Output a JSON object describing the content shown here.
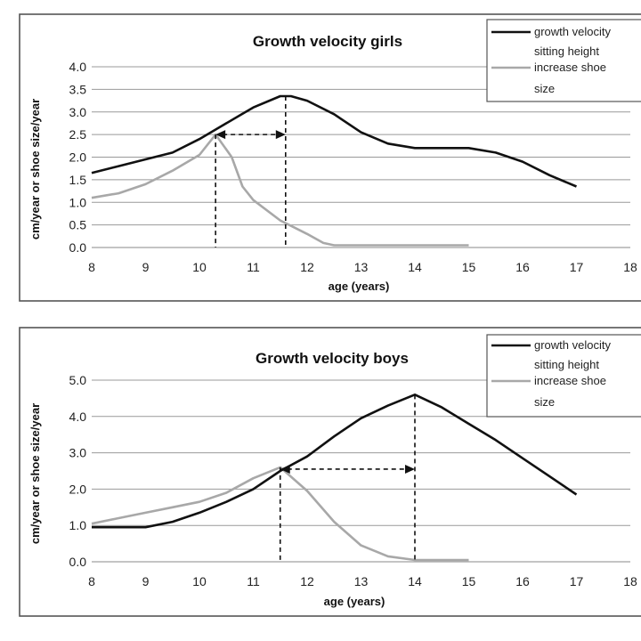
{
  "chart_data": [
    {
      "type": "line",
      "title": "Growth velocity girls",
      "xlabel": "age (years)",
      "ylabel": "cm/year or shoe size/year",
      "xlim": [
        8,
        18
      ],
      "ylim": [
        0,
        4
      ],
      "x_ticks": [
        "8",
        "9",
        "10",
        "11",
        "12",
        "13",
        "14",
        "15",
        "16",
        "17",
        "18"
      ],
      "y_ticks": [
        "0.0",
        "0.5",
        "1.0",
        "1.5",
        "2.0",
        "2.5",
        "3.0",
        "3.5",
        "4.0"
      ],
      "y_tick_values": [
        0,
        0.5,
        1,
        1.5,
        2,
        2.5,
        3,
        3.5,
        4
      ],
      "grid": "horizontal",
      "legend_position": "top-right",
      "series": [
        {
          "name": "growth velocity sitting height",
          "color": "#111111",
          "points": [
            [
              8,
              1.65
            ],
            [
              8.5,
              1.8
            ],
            [
              9,
              1.95
            ],
            [
              9.5,
              2.1
            ],
            [
              10,
              2.4
            ],
            [
              10.5,
              2.75
            ],
            [
              11,
              3.1
            ],
            [
              11.5,
              3.35
            ],
            [
              11.7,
              3.35
            ],
            [
              12,
              3.25
            ],
            [
              12.5,
              2.95
            ],
            [
              13,
              2.55
            ],
            [
              13.5,
              2.3
            ],
            [
              14,
              2.2
            ],
            [
              14.5,
              2.2
            ],
            [
              15,
              2.2
            ],
            [
              15.5,
              2.1
            ],
            [
              16,
              1.9
            ],
            [
              16.5,
              1.6
            ],
            [
              17,
              1.35
            ]
          ]
        },
        {
          "name": "increase shoe size",
          "color": "#a8a8a8",
          "points": [
            [
              8,
              1.1
            ],
            [
              8.5,
              1.2
            ],
            [
              9,
              1.4
            ],
            [
              9.5,
              1.7
            ],
            [
              10,
              2.05
            ],
            [
              10.3,
              2.5
            ],
            [
              10.6,
              2.0
            ],
            [
              10.8,
              1.35
            ],
            [
              11,
              1.05
            ],
            [
              11.5,
              0.6
            ],
            [
              12,
              0.3
            ],
            [
              12.3,
              0.1
            ],
            [
              12.5,
              0.05
            ],
            [
              13,
              0.05
            ],
            [
              14,
              0.05
            ],
            [
              15,
              0.05
            ]
          ]
        }
      ],
      "annotations": {
        "arrow_y": 2.5,
        "x_start": 10.3,
        "x_end": 11.6,
        "style": "dashed double-headed arrow with dashed drop lines to x-axis"
      }
    },
    {
      "type": "line",
      "title": "Growth velocity boys",
      "xlabel": "age (years)",
      "ylabel": "cm/year or shoe size/year",
      "xlim": [
        8,
        18
      ],
      "ylim": [
        0,
        5
      ],
      "x_ticks": [
        "8",
        "9",
        "10",
        "11",
        "12",
        "13",
        "14",
        "15",
        "16",
        "17",
        "18"
      ],
      "y_ticks": [
        "0.0",
        "1.0",
        "2.0",
        "3.0",
        "4.0",
        "5.0"
      ],
      "y_tick_values": [
        0,
        1,
        2,
        3,
        4,
        5
      ],
      "grid": "horizontal",
      "legend_position": "top-right",
      "series": [
        {
          "name": "growth velocity sitting height",
          "color": "#111111",
          "points": [
            [
              8,
              0.95
            ],
            [
              8.5,
              0.95
            ],
            [
              9,
              0.95
            ],
            [
              9.5,
              1.1
            ],
            [
              10,
              1.35
            ],
            [
              10.5,
              1.65
            ],
            [
              11,
              2.0
            ],
            [
              11.5,
              2.5
            ],
            [
              12,
              2.9
            ],
            [
              12.5,
              3.45
            ],
            [
              13,
              3.95
            ],
            [
              13.5,
              4.3
            ],
            [
              14,
              4.6
            ],
            [
              14.5,
              4.25
            ],
            [
              15,
              3.8
            ],
            [
              15.5,
              3.35
            ],
            [
              16,
              2.85
            ],
            [
              16.5,
              2.35
            ],
            [
              17,
              1.85
            ]
          ]
        },
        {
          "name": "increase shoe size",
          "color": "#a8a8a8",
          "points": [
            [
              8,
              1.05
            ],
            [
              8.5,
              1.2
            ],
            [
              9,
              1.35
            ],
            [
              9.5,
              1.5
            ],
            [
              10,
              1.65
            ],
            [
              10.5,
              1.9
            ],
            [
              11,
              2.3
            ],
            [
              11.5,
              2.6
            ],
            [
              12,
              1.95
            ],
            [
              12.5,
              1.1
            ],
            [
              13,
              0.45
            ],
            [
              13.5,
              0.15
            ],
            [
              14,
              0.05
            ],
            [
              14.5,
              0.05
            ],
            [
              15,
              0.05
            ]
          ]
        }
      ],
      "annotations": {
        "arrow_y": 2.55,
        "x_start": 11.5,
        "x_end": 14,
        "style": "dashed double-headed arrow with dashed drop lines to x-axis"
      }
    }
  ],
  "legend": {
    "line1": "growth velocity",
    "line2": "sitting height",
    "line3": "increase shoe",
    "line4": "size"
  }
}
